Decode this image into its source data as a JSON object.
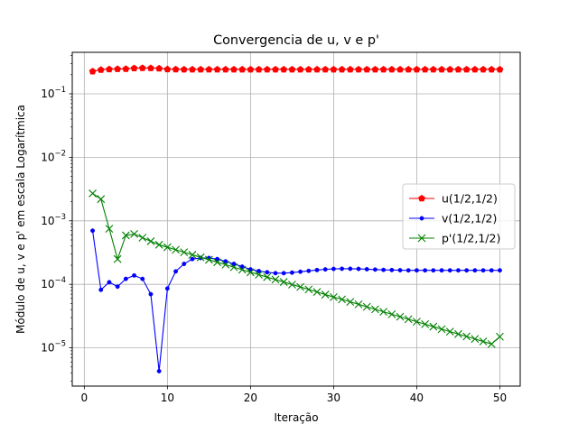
{
  "chart_data": {
    "type": "line",
    "title": "Convergencia de u, v e p'",
    "xlabel": "Iteração",
    "ylabel": "Módulo de u, v e p' em escala Logarítmica",
    "xlim": [
      -1.45,
      52.45
    ],
    "ylim": [
      2.5e-06,
      0.45
    ],
    "yscale": "log",
    "grid": true,
    "legend_position": "center-right",
    "x_ticks": [
      0,
      10,
      20,
      30,
      40,
      50
    ],
    "y_ticks": [
      {
        "value": 1e-05,
        "base": "10",
        "exp": "−5"
      },
      {
        "value": 0.0001,
        "base": "10",
        "exp": "−4"
      },
      {
        "value": 0.001,
        "base": "10",
        "exp": "−3"
      },
      {
        "value": 0.01,
        "base": "10",
        "exp": "−2"
      },
      {
        "value": 0.1,
        "base": "10",
        "exp": "−1"
      }
    ],
    "x": [
      1,
      2,
      3,
      4,
      5,
      6,
      7,
      8,
      9,
      10,
      11,
      12,
      13,
      14,
      15,
      16,
      17,
      18,
      19,
      20,
      21,
      22,
      23,
      24,
      25,
      26,
      27,
      28,
      29,
      30,
      31,
      32,
      33,
      34,
      35,
      36,
      37,
      38,
      39,
      40,
      41,
      42,
      43,
      44,
      45,
      46,
      47,
      48,
      49,
      50
    ],
    "series": [
      {
        "name": "u(1/2,1/2)",
        "color": "#ff0000",
        "marker": "pentagon",
        "values": [
          0.225,
          0.238,
          0.243,
          0.245,
          0.246,
          0.252,
          0.254,
          0.253,
          0.25,
          0.243,
          0.242,
          0.241,
          0.241,
          0.241,
          0.241,
          0.241,
          0.241,
          0.241,
          0.241,
          0.241,
          0.241,
          0.241,
          0.241,
          0.241,
          0.241,
          0.241,
          0.241,
          0.241,
          0.241,
          0.241,
          0.241,
          0.241,
          0.241,
          0.241,
          0.241,
          0.241,
          0.241,
          0.241,
          0.241,
          0.241,
          0.241,
          0.241,
          0.241,
          0.241,
          0.241,
          0.241,
          0.241,
          0.241,
          0.241,
          0.241
        ]
      },
      {
        "name": "v(1/2,1/2)",
        "color": "#0000ff",
        "marker": "dot",
        "values": [
          0.0007,
          8.2e-05,
          0.000108,
          9.2e-05,
          0.000122,
          0.000138,
          0.000122,
          7e-05,
          4.3e-06,
          8.6e-05,
          0.00016,
          0.00021,
          0.00025,
          0.00026,
          0.00026,
          0.00025,
          0.00023,
          0.00021,
          0.00019,
          0.000172,
          0.000162,
          0.000155,
          0.00015,
          0.00015,
          0.000153,
          0.000158,
          0.000163,
          0.000168,
          0.000172,
          0.000175,
          0.000176,
          0.000176,
          0.000175,
          0.000173,
          0.000171,
          0.000169,
          0.000168,
          0.000167,
          0.000166,
          0.000166,
          0.000166,
          0.000166,
          0.000166,
          0.000166,
          0.000166,
          0.000166,
          0.000166,
          0.000166,
          0.000166,
          0.000166
        ]
      },
      {
        "name": "p'(1/2,1/2)",
        "color": "#008000",
        "marker": "x",
        "values": [
          0.0027,
          0.0022,
          0.00075,
          0.00025,
          0.00059,
          0.00062,
          0.000542,
          0.000477,
          0.00042,
          0.000384,
          0.00035,
          0.00032,
          0.000292,
          0.000267,
          0.000244,
          0.000223,
          0.000204,
          0.000186,
          0.00017,
          0.000155,
          0.000142,
          0.00013,
          0.000119,
          0.000109,
          9.9e-05,
          9.1e-05,
          8.3e-05,
          7.6e-05,
          6.9e-05,
          6.3e-05,
          5.8e-05,
          5.3e-05,
          4.85e-05,
          4.43e-05,
          4.05e-05,
          3.7e-05,
          3.38e-05,
          3.09e-05,
          2.82e-05,
          2.58e-05,
          2.36e-05,
          2.16e-05,
          1.97e-05,
          1.8e-05,
          1.65e-05,
          1.51e-05,
          1.38e-05,
          1.26e-05,
          1.15e-05,
          1.5e-05
        ]
      }
    ]
  }
}
